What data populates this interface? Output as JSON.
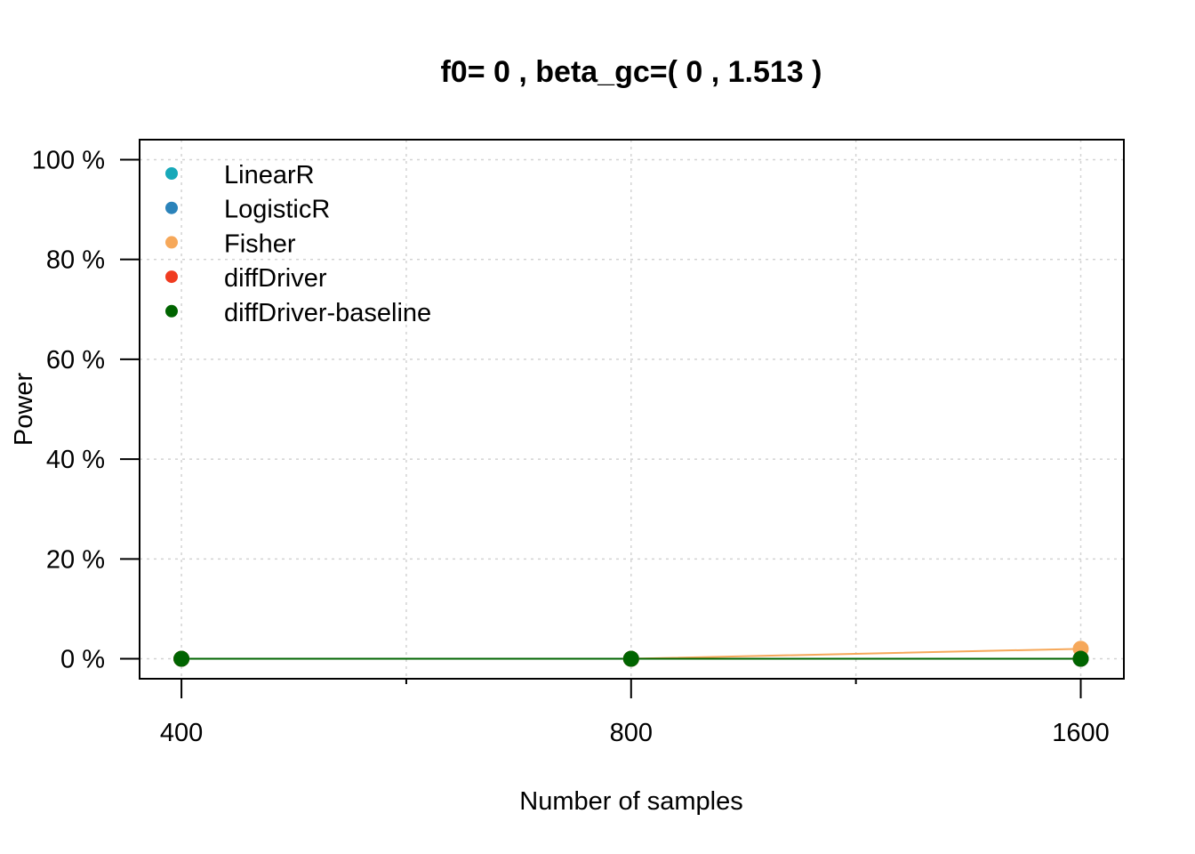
{
  "chart_data": {
    "type": "line",
    "title": "f0= 0 , beta_gc=( 0 , 1.513 )",
    "xlabel": "Number of samples",
    "ylabel": "Power",
    "x": [
      400,
      800,
      1600
    ],
    "x_tick_labels": [
      "400",
      "800",
      "1600"
    ],
    "x_scale": "log",
    "xlim": [
      375,
      1710
    ],
    "ylim": [
      -0.04,
      1.04
    ],
    "y_ticks": [
      0,
      0.2,
      0.4,
      0.6,
      0.8,
      1.0
    ],
    "y_tick_labels": [
      "0 %",
      "20 %",
      "40 %",
      "60 %",
      "80 %",
      "100 %"
    ],
    "grid": true,
    "legend_position": "top-left",
    "series": [
      {
        "name": "LinearR",
        "color": "#17a9b9",
        "values": [
          0,
          0,
          0
        ]
      },
      {
        "name": "LogisticR",
        "color": "#2b83ba",
        "values": [
          0,
          0,
          0
        ]
      },
      {
        "name": "Fisher",
        "color": "#f6a85a",
        "values": [
          0,
          0,
          0.02
        ]
      },
      {
        "name": "diffDriver",
        "color": "#f03b20",
        "values": [
          0,
          0,
          0
        ]
      },
      {
        "name": "diffDriver-baseline",
        "color": "#006400",
        "values": [
          0,
          0,
          0
        ]
      }
    ]
  }
}
